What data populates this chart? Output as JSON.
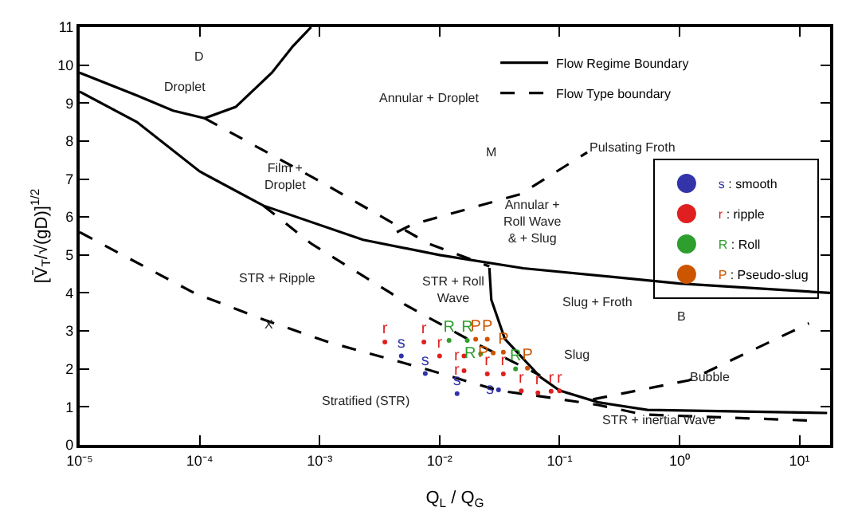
{
  "chart_data": {
    "type": "scatter",
    "xlabel": "Q$_{L}$ / Q$_{G}$",
    "ylabel": "[V̄$_{T}$/√(gD)]$^{1/2}$",
    "log": "x",
    "xlim": [
      1e-05,
      18
    ],
    "ylim": [
      0,
      11
    ],
    "xticks": [
      {
        "value": 1e-05,
        "label": "10⁻⁵"
      },
      {
        "value": 0.0001,
        "label": "10⁻⁴"
      },
      {
        "value": 0.001,
        "label": "10⁻³"
      },
      {
        "value": 0.01,
        "label": "10⁻²"
      },
      {
        "value": 0.1,
        "label": "10⁻¹"
      },
      {
        "value": 1,
        "label": "10⁰"
      },
      {
        "value": 10,
        "label": "10¹"
      }
    ],
    "yticks": [
      0,
      1,
      2,
      3,
      4,
      5,
      6,
      7,
      8,
      9,
      10,
      11
    ],
    "legend": "right",
    "series": [
      {
        "type": "line",
        "line_style": "solid",
        "color": "#000000",
        "x": [
          1e-05,
          3e-05,
          6e-05,
          0.00011,
          0.0002,
          0.0004,
          0.0006,
          0.00085
        ],
        "values": [
          9.8,
          9.2,
          8.8,
          8.6,
          8.9,
          9.8,
          10.5,
          11
        ]
      },
      {
        "type": "line",
        "line_style": "solid",
        "color": "#000000",
        "name": "Flow Regime Boundary",
        "x": [
          1e-05,
          3e-05,
          0.0001,
          0.00034,
          0.0023,
          0.01,
          0.05,
          1,
          18
        ],
        "values": [
          9.3,
          8.5,
          7.2,
          6.3,
          5.4,
          5.0,
          4.65,
          4.25,
          4.0
        ]
      },
      {
        "type": "line",
        "line_style": "solid",
        "color": "#000000",
        "x": [
          0.026,
          0.027,
          0.035,
          0.069,
          0.1,
          0.21,
          0.54,
          17
        ],
        "values": [
          4.66,
          3.82,
          2.79,
          1.79,
          1.43,
          1.12,
          0.92,
          0.84
        ]
      },
      {
        "type": "line",
        "line_style": "dashed",
        "color": "#000000",
        "name": "Flow Type boundary",
        "x": [
          0.00011,
          0.00093,
          0.0081,
          0.026
        ],
        "values": [
          8.6,
          7.0,
          5.3,
          4.7
        ]
      },
      {
        "type": "line",
        "line_style": "dashed",
        "color": "#000000",
        "x": [
          0.00034,
          0.00085,
          0.004,
          0.0051,
          0.019,
          0.069
        ],
        "values": [
          6.3,
          5.3,
          3.98,
          3.7,
          2.71,
          1.83
        ]
      },
      {
        "type": "line",
        "line_style": "dashed",
        "color": "#000000",
        "x": [
          0.0044,
          0.0059,
          0.047,
          0.17
        ],
        "values": [
          5.6,
          5.8,
          6.6,
          7.7
        ]
      },
      {
        "type": "line",
        "line_style": "dashed",
        "color": "#000000",
        "x": [
          1e-05,
          9e-05,
          0.00034,
          0.0012,
          0.0076,
          0.031,
          0.085,
          0.21,
          0.5,
          12
        ],
        "values": [
          5.6,
          4.0,
          3.3,
          2.7,
          2.0,
          1.43,
          1.24,
          1.05,
          0.8,
          0.64
        ]
      },
      {
        "type": "line",
        "line_style": "dashed",
        "color": "#000000",
        "x": [
          0.19,
          1.2,
          4.1,
          12
        ],
        "values": [
          1.2,
          1.7,
          2.5,
          3.2
        ]
      },
      {
        "name": "s : smooth",
        "color": "#3333aa",
        "x": [
          0.0048,
          0.0076,
          0.014,
          0.031
        ],
        "values": [
          2.34,
          1.88,
          1.35,
          1.45
        ],
        "value_labels": [
          "s",
          "s",
          "s",
          "s"
        ]
      },
      {
        "name": "r : ripple",
        "color": "#e02020",
        "x": [
          0.0035,
          0.0074,
          0.01,
          0.016,
          0.016,
          0.025,
          0.034,
          0.048,
          0.066,
          0.085,
          0.1
        ],
        "values": [
          2.71,
          2.71,
          2.34,
          2.34,
          1.95,
          1.87,
          1.87,
          1.42,
          1.37,
          1.41,
          1.42
        ],
        "value_labels": [
          "r",
          "r",
          "r",
          "r",
          "r",
          "r",
          "r",
          "r",
          "r",
          "r",
          "r"
        ]
      },
      {
        "name": "R : Roll",
        "color": "#2e9e2e",
        "x": [
          0.012,
          0.017,
          0.022,
          0.043
        ],
        "values": [
          2.75,
          2.75,
          2.4,
          2.0
        ],
        "value_labels": [
          "R",
          "R",
          "R",
          "R"
        ]
      },
      {
        "name": "P : Pseudo-slug",
        "color": "#cc5500",
        "x": [
          0.02,
          0.025,
          0.028,
          0.034,
          0.054
        ],
        "values": [
          2.78,
          2.78,
          2.42,
          2.44,
          2.02
        ],
        "value_labels": [
          "P",
          "P",
          "P",
          "P",
          "P"
        ]
      }
    ],
    "annotations": [
      "D",
      "Droplet",
      "Annular + Droplet",
      "M",
      "Pulsating Froth",
      "Film +\nDroplet",
      "Annular +\nRoll Wave\n& + Slug",
      "STR + Ripple",
      "STR + Roll\nWave",
      "X",
      "Stratified (STR)",
      "Slug + Froth",
      "B",
      "Slug",
      "Bubble",
      "STR + inertial Wave"
    ]
  }
}
